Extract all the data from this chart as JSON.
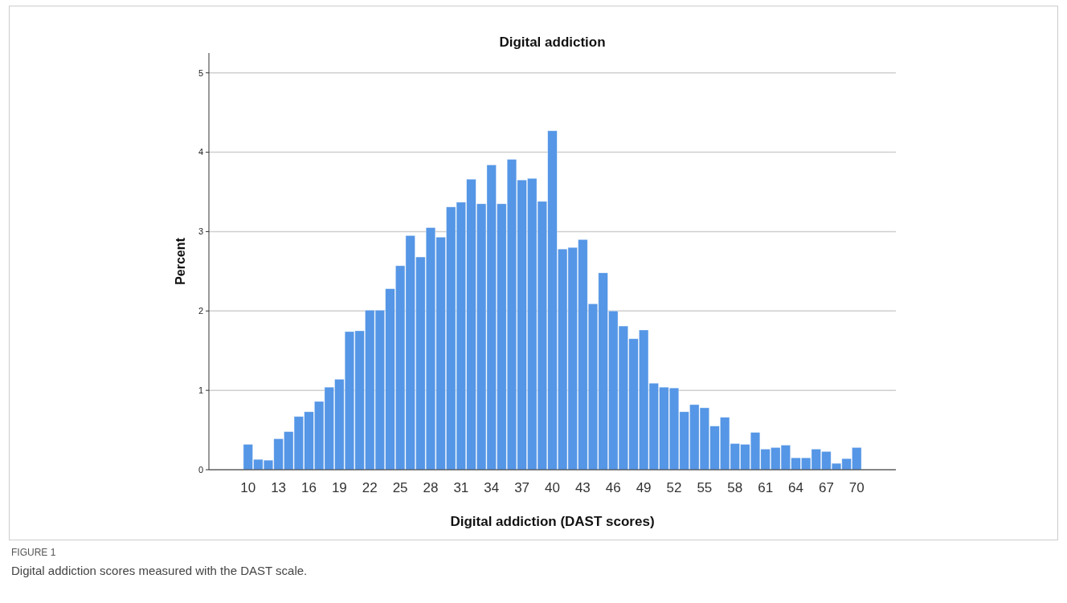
{
  "chart_data": {
    "type": "bar",
    "title": "Digital addiction",
    "xlabel": "Digital addiction (DAST scores)",
    "ylabel": "Percent",
    "categories": [
      "10",
      null,
      null,
      "13",
      null,
      null,
      "16",
      null,
      null,
      "19",
      null,
      null,
      "22",
      null,
      null,
      "25",
      null,
      null,
      "28",
      null,
      null,
      "31",
      null,
      null,
      "34",
      null,
      null,
      "37",
      null,
      null,
      "40",
      null,
      null,
      "43",
      null,
      null,
      "46",
      null,
      null,
      "49",
      null,
      null,
      "52",
      null,
      null,
      "55",
      null,
      null,
      "58",
      null,
      null,
      "61",
      null,
      null,
      "64",
      null,
      null,
      "67",
      null,
      null,
      "70"
    ],
    "values": [
      0.32,
      0.13,
      0.12,
      0.39,
      0.48,
      0.67,
      0.73,
      0.86,
      1.04,
      1.14,
      1.74,
      1.75,
      2.01,
      2.01,
      2.28,
      2.57,
      2.95,
      2.68,
      3.05,
      2.93,
      3.31,
      3.37,
      3.66,
      3.35,
      3.84,
      3.35,
      3.91,
      3.65,
      3.67,
      3.38,
      4.27,
      2.78,
      2.8,
      2.9,
      2.09,
      2.48,
      2.0,
      1.81,
      1.65,
      1.76,
      1.09,
      1.04,
      1.03,
      0.73,
      0.82,
      0.78,
      0.55,
      0.66,
      0.33,
      0.32,
      0.47,
      0.26,
      0.28,
      0.31,
      0.15,
      0.15,
      0.26,
      0.23,
      0.08,
      0.14,
      0.28
    ],
    "color": "#5596e6",
    "ylim": [
      0,
      5.25
    ],
    "yticks": [
      0,
      1,
      2,
      3,
      4,
      5
    ],
    "grid": "y",
    "annotations": [
      "FIGURE 1",
      "Digital addiction scores measured with the DAST scale."
    ]
  }
}
